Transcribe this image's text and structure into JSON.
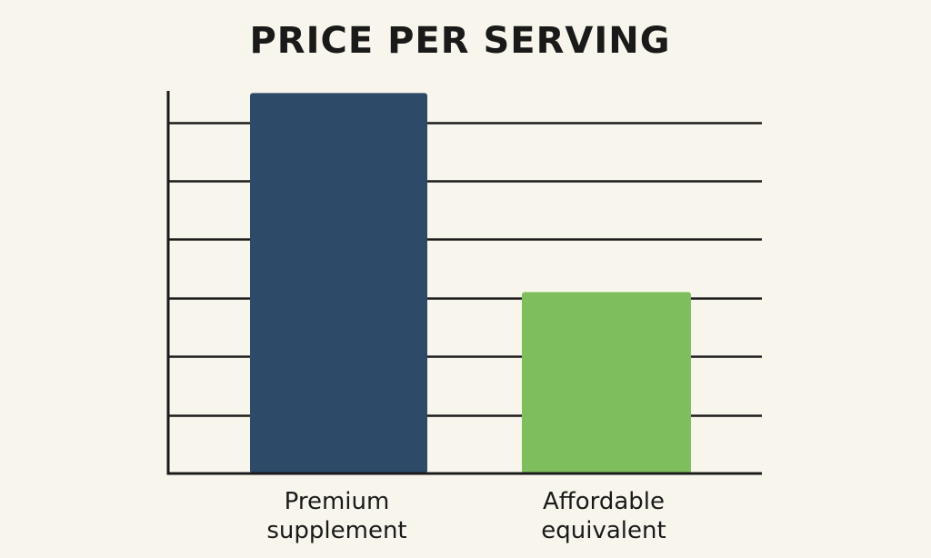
{
  "chart_data": {
    "type": "bar",
    "title": "PRICE PER SERVING",
    "categories": [
      [
        "Premium",
        "supplement"
      ],
      [
        "Affordable",
        "equivalent"
      ]
    ],
    "values": [
      6.5,
      3.1
    ],
    "colors": [
      "#2d4a68",
      "#7fbe5c"
    ],
    "xlabel": "",
    "ylabel": "",
    "ylim": [
      0,
      6.8
    ],
    "yticks": [
      1,
      2,
      3,
      4,
      5,
      6
    ],
    "grid": true,
    "legend": "none"
  }
}
